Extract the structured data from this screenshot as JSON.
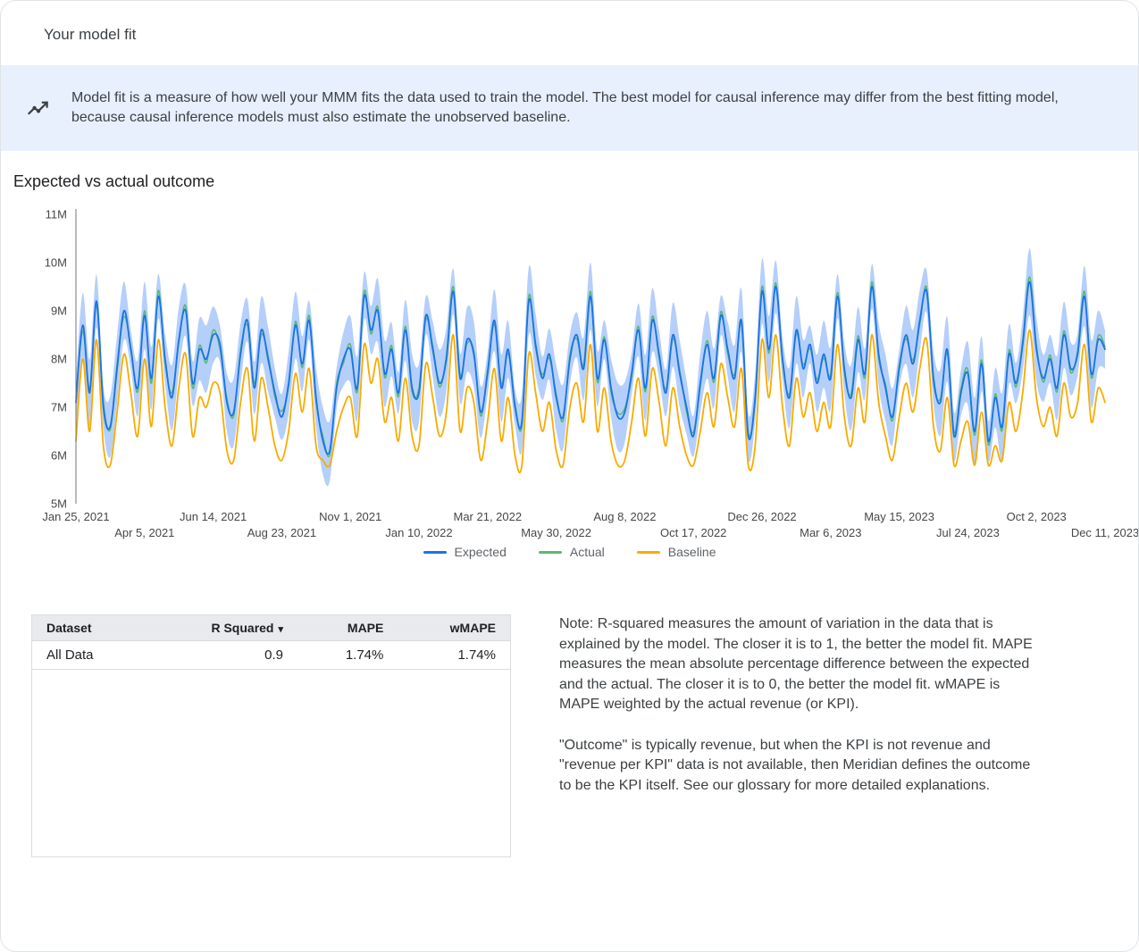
{
  "card": {
    "title": "Your model fit"
  },
  "banner": {
    "icon": "model-fit-trend-icon",
    "text": "Model fit is a measure of how well your MMM fits the data used to train the model. The best model for causal inference may differ from the best fitting model, because causal inference models must also estimate the unobserved baseline."
  },
  "section": {
    "title": "Expected vs actual outcome"
  },
  "chart_data": {
    "type": "line",
    "title": "Expected vs actual outcome",
    "xlabel": "",
    "ylabel": "",
    "values_unit": "millions",
    "ylim": [
      5000000,
      11000000
    ],
    "y_axis": {
      "min": 5,
      "max": 11,
      "tick_labels": [
        "5M",
        "6M",
        "7M",
        "8M",
        "9M",
        "10M",
        "11M"
      ]
    },
    "x_ticks": [
      {
        "label": "Jan 25, 2021",
        "week": 0,
        "row": 0
      },
      {
        "label": "Apr 5, 2021",
        "week": 10,
        "row": 1
      },
      {
        "label": "Jun 14, 2021",
        "week": 20,
        "row": 0
      },
      {
        "label": "Aug 23, 2021",
        "week": 30,
        "row": 1
      },
      {
        "label": "Nov 1, 2021",
        "week": 40,
        "row": 0
      },
      {
        "label": "Jan 10, 2022",
        "week": 50,
        "row": 1
      },
      {
        "label": "Mar 21, 2022",
        "week": 60,
        "row": 0
      },
      {
        "label": "May 30, 2022",
        "week": 70,
        "row": 1
      },
      {
        "label": "Aug 8, 2022",
        "week": 80,
        "row": 0
      },
      {
        "label": "Oct 17, 2022",
        "week": 90,
        "row": 1
      },
      {
        "label": "Dec 26, 2022",
        "week": 100,
        "row": 0
      },
      {
        "label": "Mar 6, 2023",
        "week": 110,
        "row": 1
      },
      {
        "label": "May 15, 2023",
        "week": 120,
        "row": 0
      },
      {
        "label": "Jul 24, 2023",
        "week": 130,
        "row": 1
      },
      {
        "label": "Oct 2, 2023",
        "week": 140,
        "row": 0
      },
      {
        "label": "Dec 11, 2023",
        "week": 150,
        "row": 1
      }
    ],
    "series": [
      {
        "name": "Expected",
        "color": "#1a73e8",
        "values": [
          7.1,
          8.7,
          7.3,
          9.2,
          7.0,
          6.6,
          7.8,
          9.0,
          8.2,
          7.4,
          8.9,
          7.6,
          9.3,
          8.0,
          7.2,
          8.4,
          9.0,
          7.5,
          8.2,
          8.0,
          8.5,
          8.3,
          7.1,
          6.9,
          8.1,
          8.8,
          7.4,
          8.6,
          8.0,
          7.3,
          6.8,
          7.5,
          8.7,
          7.9,
          8.8,
          7.2,
          6.3,
          6.1,
          7.4,
          8.0,
          8.2,
          7.4,
          9.3,
          8.6,
          9.0,
          7.7,
          8.2,
          7.3,
          8.6,
          7.4,
          7.3,
          8.9,
          8.2,
          7.5,
          8.0,
          9.4,
          7.6,
          8.4,
          8.1,
          6.9,
          7.7,
          8.8,
          7.4,
          8.2,
          7.0,
          6.7,
          9.2,
          8.3,
          7.6,
          8.1,
          7.2,
          6.8,
          8.0,
          8.5,
          7.8,
          9.3,
          7.6,
          8.4,
          7.4,
          6.8,
          6.9,
          7.7,
          8.6,
          7.4,
          8.8,
          8.1,
          7.3,
          8.5,
          7.7,
          7.0,
          6.4,
          7.5,
          8.3,
          7.6,
          8.9,
          8.2,
          7.6,
          8.8,
          6.4,
          7.2,
          9.4,
          8.2,
          9.5,
          8.0,
          7.2,
          8.6,
          7.8,
          8.3,
          7.5,
          8.1,
          7.6,
          9.3,
          7.8,
          7.2,
          8.4,
          7.7,
          9.5,
          8.1,
          7.4,
          6.8,
          7.8,
          8.5,
          7.9,
          8.8,
          9.4,
          7.6,
          7.1,
          8.2,
          6.4,
          7.3,
          7.7,
          6.5,
          7.9,
          6.3,
          7.2,
          6.6,
          8.1,
          7.5,
          8.3,
          9.6,
          8.2,
          7.6,
          8.0,
          7.4,
          8.5,
          7.8,
          8.1,
          9.3,
          7.7,
          8.4,
          8.2
        ]
      },
      {
        "name": "Actual",
        "color": "#5bb974",
        "values": [
          7.2,
          8.58,
          7.38,
          9.12,
          7.12,
          6.54,
          7.9,
          8.88,
          8.26,
          7.32,
          9.0,
          7.5,
          9.42,
          7.92,
          7.3,
          8.34,
          9.1,
          7.4,
          8.28,
          7.92,
          8.6,
          8.2,
          7.18,
          6.82,
          8.2,
          8.7,
          7.5,
          8.5,
          8.08,
          7.22,
          6.92,
          7.42,
          8.78,
          7.82,
          8.9,
          7.12,
          6.4,
          6.02,
          7.48,
          7.92,
          8.3,
          7.32,
          9.4,
          8.52,
          9.08,
          7.62,
          8.28,
          7.22,
          8.68,
          7.32,
          7.4,
          8.82,
          8.28,
          7.42,
          8.08,
          9.5,
          7.68,
          8.32,
          8.16,
          6.82,
          7.78,
          8.72,
          7.48,
          8.12,
          7.08,
          6.62,
          9.3,
          8.22,
          7.68,
          8.02,
          7.28,
          6.72,
          8.08,
          8.42,
          7.88,
          9.4,
          7.52,
          8.46,
          7.32,
          6.88,
          6.98,
          7.62,
          8.68,
          7.32,
          8.88,
          8.02,
          7.38,
          8.42,
          7.78,
          6.92,
          6.48,
          7.42,
          8.38,
          7.52,
          8.98,
          8.12,
          7.68,
          8.72,
          6.48,
          7.12,
          9.5,
          8.12,
          9.58,
          7.92,
          7.28,
          8.52,
          7.88,
          8.22,
          7.58,
          8.02,
          7.68,
          9.38,
          7.72,
          7.28,
          8.48,
          7.62,
          9.6,
          8.02,
          7.48,
          6.72,
          7.88,
          8.42,
          7.98,
          8.72,
          9.48,
          7.52,
          7.18,
          8.12,
          6.48,
          7.38,
          7.78,
          6.42,
          7.98,
          6.22,
          7.28,
          6.52,
          8.18,
          7.42,
          8.38,
          9.7,
          8.28,
          7.52,
          8.08,
          7.32,
          8.58,
          7.72,
          8.18,
          9.4,
          7.62,
          8.48,
          8.26
        ]
      },
      {
        "name": "Baseline",
        "color": "#f9ab00",
        "values": [
          6.3,
          8.0,
          6.5,
          8.4,
          6.2,
          5.8,
          6.9,
          8.1,
          7.3,
          6.4,
          8.0,
          6.6,
          8.4,
          7.0,
          6.2,
          7.4,
          8.1,
          6.4,
          7.2,
          7.0,
          7.5,
          7.3,
          6.1,
          5.9,
          7.1,
          7.8,
          6.3,
          7.6,
          7.0,
          6.2,
          5.9,
          6.5,
          7.7,
          6.9,
          7.8,
          6.2,
          5.9,
          5.8,
          6.5,
          7.0,
          7.2,
          6.4,
          8.3,
          7.5,
          8.0,
          6.7,
          7.2,
          6.3,
          7.6,
          6.4,
          6.2,
          7.9,
          7.2,
          6.4,
          6.9,
          8.5,
          6.5,
          7.4,
          7.1,
          5.9,
          6.7,
          7.8,
          6.3,
          7.2,
          6.0,
          5.8,
          8.1,
          7.3,
          6.5,
          7.1,
          6.1,
          5.8,
          7.0,
          7.5,
          6.7,
          8.3,
          6.5,
          7.4,
          6.3,
          5.8,
          5.9,
          6.7,
          7.6,
          6.4,
          7.8,
          7.1,
          6.2,
          7.4,
          6.6,
          6.0,
          5.8,
          6.5,
          7.3,
          6.6,
          7.9,
          7.2,
          6.6,
          7.8,
          5.8,
          6.2,
          8.4,
          7.2,
          8.5,
          7.0,
          6.2,
          7.6,
          6.8,
          7.3,
          6.5,
          7.1,
          6.6,
          8.3,
          6.8,
          6.2,
          7.4,
          6.7,
          8.5,
          7.1,
          6.4,
          5.9,
          6.8,
          7.5,
          6.9,
          7.8,
          8.4,
          6.6,
          6.1,
          7.2,
          5.8,
          6.3,
          6.7,
          5.8,
          6.9,
          5.8,
          6.2,
          5.9,
          7.1,
          6.5,
          7.3,
          8.6,
          7.2,
          6.6,
          7.0,
          6.4,
          7.5,
          6.8,
          7.1,
          8.3,
          6.7,
          7.4,
          7.1
        ]
      }
    ],
    "ci_band": {
      "color": "#a8c7fa",
      "opacity": 0.85,
      "base_halfwidth": 0.38,
      "halfwidth_variation": 0.32
    },
    "legend_position": "bottom",
    "legend": [
      "Expected",
      "Actual",
      "Baseline"
    ]
  },
  "table": {
    "headers": [
      "Dataset",
      "R Squared",
      "MAPE",
      "wMAPE"
    ],
    "sort_column": "R Squared",
    "sort_caret_icon": "▾",
    "rows": [
      [
        "All Data",
        "0.9",
        "1.74%",
        "1.74%"
      ]
    ]
  },
  "note": {
    "paragraph1": "Note: R-squared measures the amount of variation in the data that is explained by the model. The closer it is to 1, the better the model fit. MAPE measures the mean absolute percentage difference between the expected and the actual. The closer it is to 0, the better the model fit. wMAPE is MAPE weighted by the actual revenue (or KPI).",
    "paragraph2": "\"Outcome\" is typically revenue, but when the KPI is not revenue and \"revenue per KPI\" data is not available, then Meridian defines the outcome to be the KPI itself. See our glossary for more detailed explanations."
  }
}
